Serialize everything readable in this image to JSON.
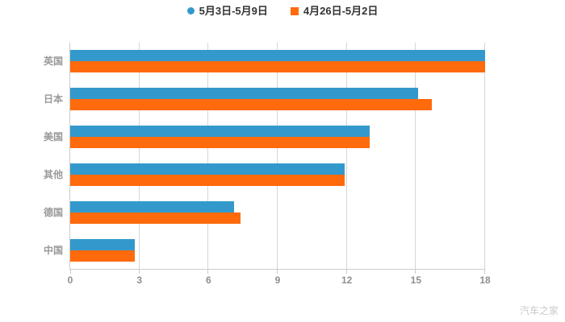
{
  "legend": {
    "items": [
      {
        "label": "5月3日-5月9日",
        "marker": "circle"
      },
      {
        "label": "4月26日-5月2日",
        "marker": "square"
      }
    ]
  },
  "watermark": {
    "text": "汽车之家"
  },
  "colors": {
    "series1": "#3399cc",
    "series2": "#ff6a0d",
    "axis": "#cccccc",
    "grid": "#d6d6d6",
    "category_label": "#999999",
    "tick_label": "#8f8f8f",
    "legend_text": "#333333",
    "background": "#ffffff",
    "watermark": "#c9c9c9"
  },
  "chart_data": {
    "type": "bar",
    "orientation": "horizontal",
    "title": "",
    "xlabel": "",
    "ylabel": "",
    "categories": [
      "英国",
      "日本",
      "美国",
      "其他",
      "德国",
      "中国"
    ],
    "series": [
      {
        "name": "5月3日-5月9日",
        "color": "#3399cc",
        "values": [
          18,
          15.1,
          13,
          11.9,
          7.1,
          2.8
        ]
      },
      {
        "name": "4月26日-5月2日",
        "color": "#ff6a0d",
        "values": [
          18,
          15.7,
          13,
          11.9,
          7.4,
          2.8
        ]
      }
    ],
    "xlim": [
      0,
      18
    ],
    "xticks": [
      0,
      3,
      6,
      9,
      12,
      15,
      18
    ],
    "grid": true,
    "legend_position": "top-center"
  }
}
